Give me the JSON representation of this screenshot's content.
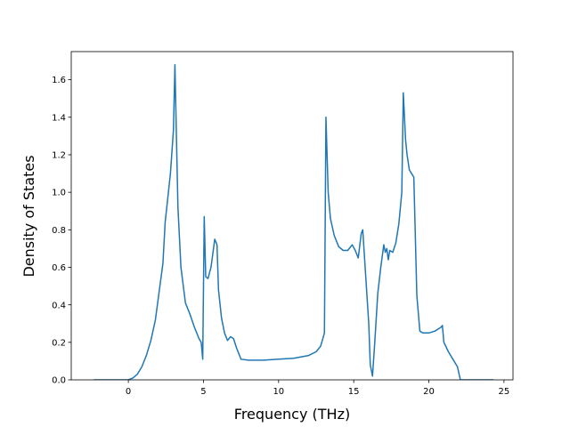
{
  "chart_data": {
    "type": "line",
    "title": "",
    "xlabel": "Frequency (THz)",
    "ylabel": "Density of States",
    "xlim": [
      -3.8,
      25.6
    ],
    "ylim": [
      0.0,
      1.75
    ],
    "xticks": [
      0,
      5,
      10,
      15,
      20,
      25
    ],
    "yticks": [
      0.0,
      0.2,
      0.4,
      0.6,
      0.8,
      1.0,
      1.2,
      1.4,
      1.6
    ],
    "xtick_labels": [
      "0",
      "5",
      "10",
      "15",
      "20",
      "25"
    ],
    "ytick_labels": [
      "0.0",
      "0.2",
      "0.4",
      "0.6",
      "0.8",
      "1.0",
      "1.2",
      "1.4",
      "1.6"
    ],
    "grid": false,
    "legend": "none",
    "series": [
      {
        "color": "#1f77b4",
        "x": [
          -2.3,
          -1.0,
          0.0,
          0.3,
          0.6,
          0.9,
          1.2,
          1.5,
          1.8,
          2.1,
          2.3,
          2.45,
          2.6,
          2.8,
          3.0,
          3.1,
          3.3,
          3.5,
          3.8,
          4.1,
          4.4,
          4.7,
          4.85,
          4.95,
          5.05,
          5.15,
          5.3,
          5.5,
          5.75,
          5.9,
          6.0,
          6.2,
          6.4,
          6.6,
          6.8,
          7.0,
          7.2,
          7.5,
          8.0,
          9.0,
          10.0,
          11.0,
          12.0,
          12.5,
          12.8,
          13.05,
          13.15,
          13.3,
          13.45,
          13.7,
          14.0,
          14.3,
          14.6,
          14.9,
          15.1,
          15.3,
          15.5,
          15.6,
          15.8,
          16.0,
          16.1,
          16.25,
          16.4,
          16.6,
          16.8,
          17.0,
          17.1,
          17.2,
          17.3,
          17.4,
          17.6,
          17.8,
          18.0,
          18.2,
          18.3,
          18.45,
          18.55,
          18.7,
          18.85,
          19.0,
          19.2,
          19.4,
          19.6,
          19.8,
          20.0,
          20.4,
          20.8,
          20.9,
          21.0,
          21.3,
          21.6,
          21.9,
          22.1,
          23.0,
          24.3
        ],
        "y": [
          0.0,
          0.0,
          0.0,
          0.01,
          0.03,
          0.07,
          0.13,
          0.21,
          0.32,
          0.5,
          0.62,
          0.84,
          0.95,
          1.1,
          1.33,
          1.68,
          0.92,
          0.6,
          0.41,
          0.35,
          0.28,
          0.22,
          0.2,
          0.11,
          0.87,
          0.55,
          0.54,
          0.6,
          0.75,
          0.72,
          0.48,
          0.33,
          0.25,
          0.21,
          0.23,
          0.22,
          0.17,
          0.11,
          0.105,
          0.105,
          0.11,
          0.115,
          0.13,
          0.15,
          0.18,
          0.25,
          1.4,
          1.0,
          0.86,
          0.77,
          0.71,
          0.69,
          0.69,
          0.72,
          0.69,
          0.65,
          0.78,
          0.8,
          0.55,
          0.3,
          0.08,
          0.02,
          0.2,
          0.46,
          0.6,
          0.72,
          0.68,
          0.7,
          0.64,
          0.69,
          0.68,
          0.73,
          0.83,
          1.0,
          1.53,
          1.28,
          1.2,
          1.12,
          1.1,
          1.08,
          0.45,
          0.26,
          0.25,
          0.25,
          0.25,
          0.26,
          0.28,
          0.29,
          0.2,
          0.15,
          0.11,
          0.07,
          0.0,
          0.0,
          0.0
        ]
      }
    ]
  }
}
